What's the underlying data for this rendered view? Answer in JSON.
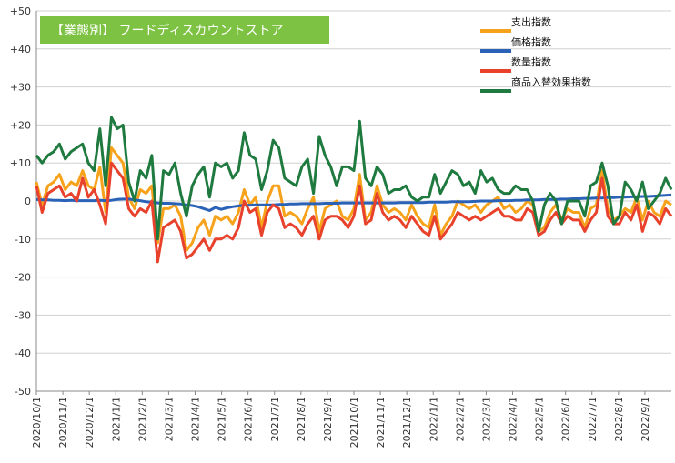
{
  "chart_data": {
    "type": "line",
    "title": "【業態別】 フードディスカウントストア",
    "title_bg": "#7dc242",
    "ylim": [
      -50,
      50
    ],
    "y_ticks": [
      "+50",
      "+40",
      "+30",
      "+20",
      "+10",
      "0",
      "-10",
      "-20",
      "-30",
      "-40",
      "-50"
    ],
    "x_ticks": [
      "2020/10/1",
      "2020/11/1",
      "2020/12/1",
      "2021/1/1",
      "2021/2/1",
      "2021/3/1",
      "2021/4/1",
      "2021/5/1",
      "2021/6/1",
      "2021/7/1",
      "2021/8/1",
      "2021/9/1",
      "2021/10/1",
      "2021/11/1",
      "2021/12/1",
      "2022/1/1",
      "2022/2/1",
      "2022/3/1",
      "2022/4/1",
      "2022/5/1",
      "2022/6/1",
      "2022/7/1",
      "2022/8/1",
      "2022/9/1"
    ],
    "legend_position": "top-right",
    "grid": true,
    "series": [
      {
        "name": "支出指数",
        "color": "#f7a21b",
        "values": [
          5,
          -1,
          4,
          5,
          7,
          3,
          5,
          4,
          8,
          4,
          3,
          9,
          -3,
          14,
          12,
          10,
          1,
          -2,
          3,
          2,
          4,
          -11,
          -2,
          -2,
          -1,
          -4,
          -13,
          -11,
          -7,
          -5,
          -9,
          -4,
          -5,
          -4,
          -6,
          -3,
          3,
          -1,
          1,
          -7,
          0,
          4,
          4,
          -4,
          -3,
          -4,
          -6,
          -2,
          1,
          -8,
          -2,
          -1,
          0,
          -4,
          -5,
          -2,
          7,
          -5,
          -3,
          4,
          -1,
          -3,
          -2,
          -3,
          -5,
          -1,
          -4,
          -6,
          -7,
          -1,
          -9,
          -6,
          -4,
          0,
          -1,
          -2,
          -1,
          -3,
          -1,
          0,
          1,
          -2,
          -1,
          -3,
          -2,
          0,
          -1,
          -8,
          -7,
          -3,
          -1,
          -5,
          -2,
          -3,
          -3,
          -7,
          -2,
          -1,
          8,
          -2,
          -5,
          -4,
          -2,
          -3,
          1,
          -5,
          0,
          -3,
          -4,
          0,
          -1
        ]
      },
      {
        "name": "価格指数",
        "color": "#2a62b8",
        "values": [
          0.4,
          0.3,
          0.3,
          0.2,
          0.2,
          0.1,
          0.2,
          0.1,
          0.1,
          0.1,
          0.1,
          0.2,
          0.1,
          0.2,
          0.4,
          0.5,
          0.5,
          0.3,
          0.1,
          -0.2,
          -0.3,
          -0.5,
          -0.6,
          -0.6,
          -0.7,
          -0.8,
          -1,
          -1.2,
          -1.5,
          -2,
          -2.5,
          -1.7,
          -2.2,
          -1.8,
          -1.5,
          -1.3,
          -1.1,
          -1.1,
          -1,
          -1,
          -1,
          -1,
          -0.9,
          -0.9,
          -0.8,
          -0.8,
          -0.7,
          -0.7,
          -0.7,
          -0.7,
          -0.6,
          -0.6,
          -0.6,
          -0.5,
          -0.5,
          -0.5,
          -0.5,
          -0.5,
          -0.5,
          -0.5,
          -0.5,
          -0.5,
          -0.5,
          -0.4,
          -0.4,
          -0.4,
          -0.4,
          -0.4,
          -0.3,
          -0.3,
          -0.3,
          -0.3,
          -0.2,
          -0.2,
          -0.2,
          -0.2,
          -0.1,
          0,
          0,
          0,
          0.1,
          0.1,
          0.1,
          0.2,
          0.2,
          0.3,
          0.3,
          0.3,
          0.4,
          0.4,
          0.4,
          0.5,
          0.5,
          0.6,
          0.6,
          0.7,
          0.7,
          0.8,
          0.8,
          0.9,
          0.9,
          1,
          1,
          1.1,
          1.1,
          1.2,
          1.2,
          1.3,
          1.4,
          1.5,
          1.6
        ]
      },
      {
        "name": "数量指数",
        "color": "#e8412c",
        "values": [
          4,
          -3,
          2,
          3,
          4,
          1,
          2,
          0,
          6,
          1,
          3,
          -1,
          -6,
          10,
          8,
          6,
          -2,
          -4,
          -2,
          -3,
          0,
          -16,
          -7,
          -6,
          -5,
          -8,
          -15,
          -14,
          -12,
          -10,
          -13,
          -10,
          -10,
          -9,
          -10,
          -7,
          0,
          -3,
          -2,
          -9,
          -3,
          -1,
          -2,
          -7,
          -6,
          -7,
          -9,
          -6,
          -4,
          -10,
          -5,
          -4,
          -4,
          -5,
          -7,
          -4,
          4,
          -6,
          -5,
          2,
          -3,
          -5,
          -4,
          -5,
          -7,
          -4,
          -6,
          -8,
          -9,
          -4,
          -10,
          -8,
          -6,
          -3,
          -4,
          -5,
          -4,
          -5,
          -4,
          -3,
          -2,
          -4,
          -4,
          -5,
          -5,
          -2,
          -3,
          -9,
          -8,
          -5,
          -3,
          -6,
          -4,
          -5,
          -5,
          -8,
          -5,
          -3,
          6,
          -4,
          -6,
          -6,
          -3,
          -5,
          -1,
          -8,
          -3,
          -4,
          -6,
          -2,
          -4
        ]
      },
      {
        "name": "商品入替効果指数",
        "color": "#1f7a3f",
        "values": [
          12,
          10,
          12,
          13,
          15,
          11,
          13,
          14,
          15,
          10,
          8,
          19,
          4,
          22,
          19,
          20,
          5,
          0,
          8,
          6,
          12,
          -10,
          8,
          7,
          10,
          2,
          -4,
          4,
          7,
          9,
          1,
          10,
          9,
          10,
          6,
          8,
          18,
          12,
          11,
          3,
          8,
          16,
          14,
          6,
          5,
          4,
          9,
          11,
          2,
          17,
          12,
          9,
          4,
          9,
          9,
          8,
          21,
          6,
          4,
          9,
          7,
          2,
          3,
          3,
          4,
          1,
          0,
          1,
          1,
          7,
          2,
          5,
          8,
          7,
          4,
          5,
          2,
          8,
          5,
          6,
          3,
          2,
          2,
          4,
          3,
          3,
          0,
          -8,
          -1,
          2,
          0,
          -6,
          0,
          0,
          0,
          -4,
          4,
          5,
          10,
          4,
          -6,
          -4,
          5,
          3,
          0,
          5,
          -2,
          0,
          2,
          6,
          3
        ]
      }
    ]
  }
}
